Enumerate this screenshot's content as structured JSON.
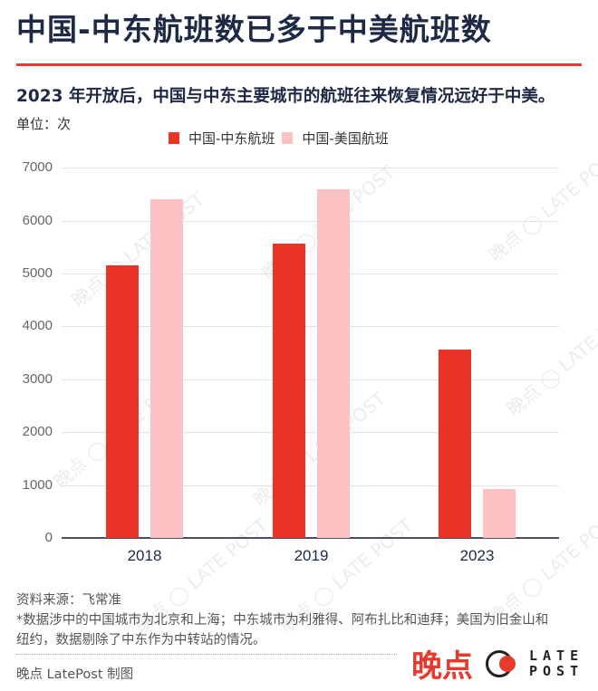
{
  "header": {
    "title": "中国-中东航班数已多于中美航班数",
    "subtitle": "2023 年开放后，中国与中东主要城市的航班往来恢复情况远好于中美。",
    "unit": "单位：次"
  },
  "colors": {
    "accent": "#e8392c",
    "series_middle_east": "#e83326",
    "series_us": "#fcc2c3",
    "text": "#1e2a45"
  },
  "legend": [
    {
      "label": "中国-中东航班",
      "color": "#e83326"
    },
    {
      "label": "中国-美国航班",
      "color": "#fcc2c3"
    }
  ],
  "chart_data": {
    "type": "bar",
    "title": "中国-中东航班数已多于中美航班数",
    "subtitle": "2023 年开放后，中国与中东主要城市的航班往来恢复情况远好于中美。",
    "xlabel": "",
    "ylabel": "单位：次",
    "categories": [
      "2018",
      "2019",
      "2023"
    ],
    "series": [
      {
        "name": "中国-中东航班",
        "values": [
          5160,
          5560,
          3570
        ]
      },
      {
        "name": "中国-美国航班",
        "values": [
          6400,
          6600,
          920
        ]
      }
    ],
    "ylim": [
      0,
      7000
    ],
    "yticks": [
      0,
      1000,
      2000,
      3000,
      4000,
      5000,
      6000,
      7000
    ],
    "grid": true,
    "legend_position": "top"
  },
  "footer": {
    "source": "资料来源：飞常准",
    "note": "*数据涉中的中国城市为北京和上海；中东城市为利雅得、阿布扎比和迪拜；美国为旧金山和纽约，数据剔除了中东作为中转站的情况。",
    "credit": "晚点 LatePost 制图",
    "logo_cn": "晚点",
    "logo_en_line1": "LATE",
    "logo_en_line2": "POST"
  },
  "watermark": "晚点"
}
